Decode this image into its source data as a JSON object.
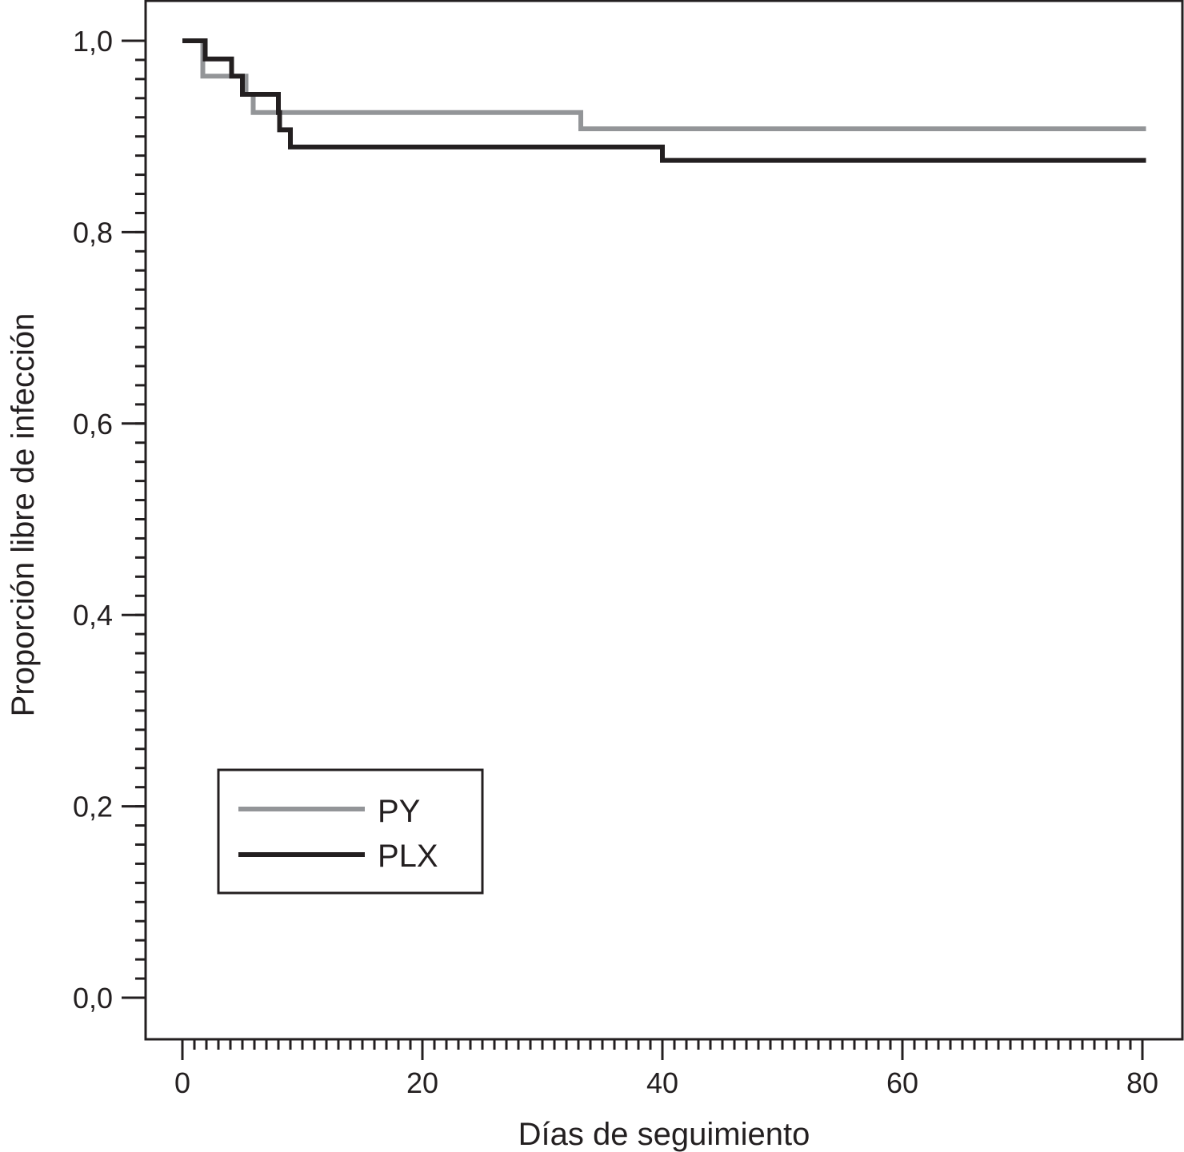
{
  "chart_data": {
    "type": "line",
    "step": true,
    "xlabel": "Días de seguimiento",
    "ylabel": "Proporción libre de infección",
    "xlim": [
      0,
      80
    ],
    "ylim": [
      0,
      1
    ],
    "x_ticks": [
      0,
      20,
      40,
      60,
      80
    ],
    "x_tick_labels": [
      "0",
      "20",
      "40",
      "60",
      "80"
    ],
    "y_ticks": [
      0,
      0.2,
      0.4,
      0.6,
      0.8,
      1.0
    ],
    "y_tick_labels": [
      "0,0",
      "0,2",
      "0,4",
      "0,6",
      "0,8",
      "1,0"
    ],
    "x_minor_step": 1,
    "y_minor_step": 0.02,
    "grid": false,
    "legend_position": "bottom-left",
    "series": [
      {
        "name": "PY",
        "color": "#939598",
        "points": [
          [
            0,
            1.0
          ],
          [
            1.7,
            0.963
          ],
          [
            5.3,
            0.944
          ],
          [
            5.9,
            0.925
          ],
          [
            33.2,
            0.908
          ],
          [
            80.3,
            0.908
          ]
        ]
      },
      {
        "name": "PLX",
        "color": "#231f20",
        "points": [
          [
            0,
            1.0
          ],
          [
            1.9,
            0.981
          ],
          [
            4.1,
            0.963
          ],
          [
            5.0,
            0.944
          ],
          [
            8.0,
            0.925
          ],
          [
            8.1,
            0.907
          ],
          [
            9.0,
            0.889
          ],
          [
            40.0,
            0.875
          ],
          [
            80.3,
            0.875
          ]
        ]
      }
    ]
  }
}
